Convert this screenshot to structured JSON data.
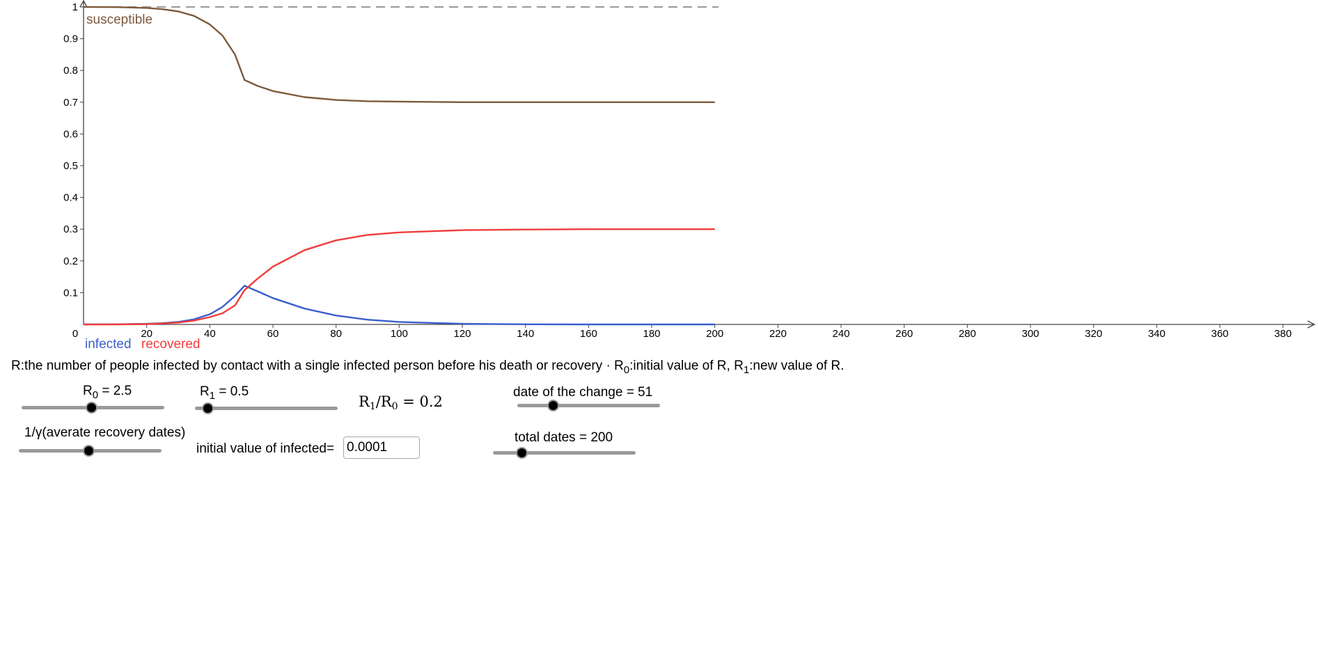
{
  "chart_data": {
    "type": "line",
    "x_range": [
      0,
      390
    ],
    "y_range": [
      0,
      1
    ],
    "x_ticks": [
      "0",
      "20",
      "40",
      "60",
      "80",
      "100",
      "120",
      "140",
      "160",
      "180",
      "200",
      "220",
      "240",
      "260",
      "280",
      "300",
      "320",
      "340",
      "360",
      "380"
    ],
    "y_ticks": [
      "0.1",
      "0.2",
      "0.3",
      "0.4",
      "0.5",
      "0.6",
      "0.7",
      "0.8",
      "0.9",
      "1"
    ],
    "reference_line": {
      "y": 1,
      "style": "dashed",
      "color": "#999999"
    },
    "series": [
      {
        "name": "susceptible",
        "color": "#7d5a3c",
        "x": [
          0,
          10,
          20,
          25,
          30,
          35,
          40,
          44,
          48,
          51,
          55,
          60,
          70,
          80,
          90,
          100,
          120,
          140,
          160,
          180,
          200
        ],
        "y": [
          0.9999,
          0.9995,
          0.997,
          0.993,
          0.986,
          0.972,
          0.945,
          0.91,
          0.85,
          0.77,
          0.752,
          0.735,
          0.716,
          0.707,
          0.703,
          0.702,
          0.7,
          0.7,
          0.7,
          0.7,
          0.7
        ]
      },
      {
        "name": "infected",
        "color": "#3a5fcd",
        "x": [
          0,
          10,
          20,
          25,
          30,
          35,
          40,
          44,
          48,
          51,
          55,
          60,
          70,
          80,
          90,
          100,
          120,
          140,
          160,
          180,
          200
        ],
        "y": [
          0.0001,
          0.0004,
          0.002,
          0.004,
          0.008,
          0.016,
          0.032,
          0.055,
          0.09,
          0.122,
          0.105,
          0.083,
          0.05,
          0.028,
          0.015,
          0.008,
          0.002,
          0.0005,
          0.0001,
          0,
          0
        ]
      },
      {
        "name": "recovered",
        "color": "#f03c3c",
        "x": [
          0,
          10,
          20,
          25,
          30,
          35,
          40,
          44,
          48,
          51,
          55,
          60,
          70,
          80,
          90,
          100,
          120,
          140,
          160,
          180,
          200
        ],
        "y": [
          0,
          0.0001,
          0.001,
          0.003,
          0.006,
          0.012,
          0.023,
          0.035,
          0.06,
          0.108,
          0.143,
          0.182,
          0.234,
          0.265,
          0.282,
          0.29,
          0.297,
          0.299,
          0.3,
          0.3,
          0.3
        ]
      }
    ]
  },
  "description": {
    "prefix": "R:the number of people infected by contact with a single infected person before his death or recovery · R",
    "sub0": "0",
    "middle": ":initial value of R, R",
    "sub1": "1",
    "suffix": ":new value of R."
  },
  "controls": {
    "r0": {
      "label_main": "R",
      "label_sub": "0",
      "label_value": " = 2.5",
      "fraction": 0.49
    },
    "r1": {
      "label_main": "R",
      "label_sub": "1",
      "label_value": " = 0.5",
      "fraction": 0.09
    },
    "ratio": {
      "num_main": "R",
      "num_sub": "1",
      "slash": "/R",
      "den_sub": "0",
      "value": " = 0.2"
    },
    "change_date": {
      "label": "date of the change = 51",
      "fraction": 0.25
    },
    "recovery": {
      "label": "1/γ(averate recovery dates)",
      "fraction": 0.49
    },
    "initial_infected": {
      "label": "initial value of infected=",
      "value": "0.0001"
    },
    "total_dates": {
      "label": "total dates = 200",
      "fraction": 0.2
    }
  }
}
